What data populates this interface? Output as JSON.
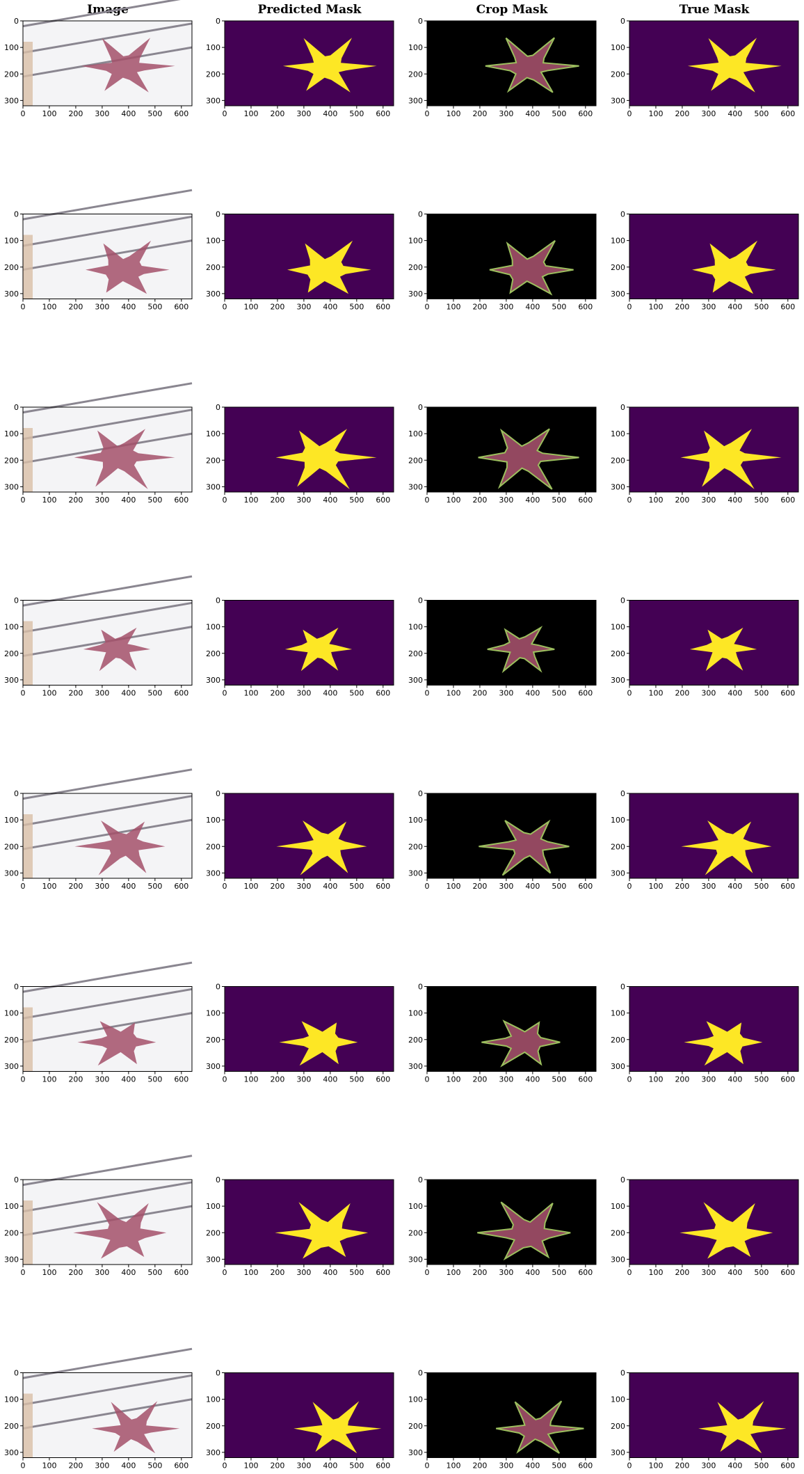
{
  "figure": {
    "columns": [
      {
        "key": "image",
        "title": "Image"
      },
      {
        "key": "predicted",
        "title": "Predicted Mask"
      },
      {
        "key": "crop",
        "title": "Crop Mask"
      },
      {
        "key": "true",
        "title": "True Mask"
      }
    ],
    "row_count": 8,
    "x_ticks": [
      "0",
      "100",
      "200",
      "300",
      "400",
      "500",
      "600"
    ],
    "x_tick_values": [
      0,
      100,
      200,
      300,
      400,
      500,
      600
    ],
    "y_ticks": [
      "0",
      "100",
      "200",
      "300"
    ],
    "y_tick_values": [
      0,
      100,
      200,
      300
    ],
    "x_range": [
      0,
      640
    ],
    "y_range": [
      0,
      320
    ],
    "colors": {
      "mask_background": "#440154",
      "mask_foreground": "#fde725",
      "crop_background": "#000000",
      "fruit_color": "#a3506a",
      "leaf_color": "#9cbf5e",
      "photo_background": "#f4f4f6",
      "rail_color": "#8a8690"
    }
  }
}
